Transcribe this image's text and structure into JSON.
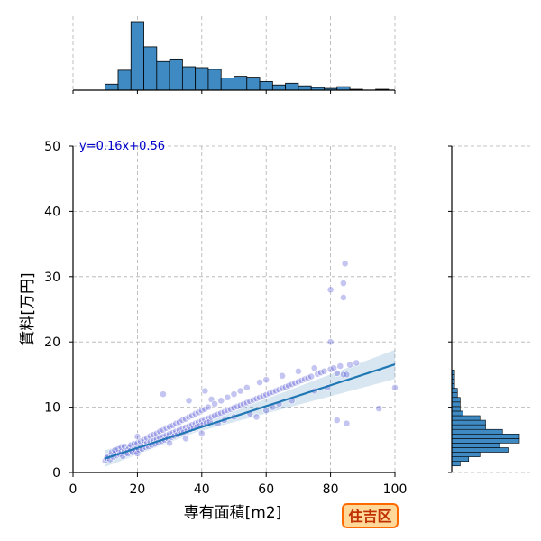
{
  "chart_data": {
    "type": "scatter",
    "xlabel": "専有面積[m2]",
    "ylabel": "賃料[万円]",
    "xlim": [
      0,
      100
    ],
    "ylim": [
      0,
      50
    ],
    "xticks": [
      "0",
      "20",
      "40",
      "60",
      "80",
      "100"
    ],
    "yticks": [
      "0",
      "10",
      "20",
      "30",
      "40",
      "50"
    ],
    "grid": true,
    "annotation": "y=0.16x+0.56",
    "badge": "住吉区",
    "regression": {
      "slope": 0.16,
      "intercept": 0.56,
      "x_range": [
        10,
        100
      ]
    },
    "marginal_x_hist": {
      "bin_edges": [
        10,
        14,
        18,
        22,
        26,
        30,
        34,
        38,
        42,
        46,
        50,
        54,
        58,
        62,
        66,
        70,
        74,
        78,
        82,
        86,
        90,
        94,
        98
      ],
      "counts": [
        7,
        23,
        79,
        50,
        33,
        36,
        27,
        26,
        24,
        14,
        16,
        15,
        10,
        6,
        8,
        5,
        3,
        2,
        4,
        1,
        0,
        1
      ]
    },
    "marginal_y_hist": {
      "bin_edges": [
        1,
        1.7,
        2.4,
        3.1,
        3.8,
        4.5,
        5.2,
        5.9,
        6.6,
        7.3,
        8,
        8.7,
        9.4,
        10.1,
        10.8,
        11.5,
        12.2,
        12.9,
        13.6,
        14.3,
        15,
        15.7
      ],
      "counts": [
        3,
        6,
        10,
        20,
        17,
        24,
        24,
        18,
        12,
        12,
        10,
        4,
        3,
        3,
        3,
        2,
        2,
        1,
        1,
        1,
        1,
        0
      ]
    },
    "points": [
      [
        10,
        1.8
      ],
      [
        10.5,
        2.2
      ],
      [
        11,
        2.5
      ],
      [
        11.5,
        2.0
      ],
      [
        12,
        2.7
      ],
      [
        12,
        3.1
      ],
      [
        12.5,
        2.4
      ],
      [
        13,
        2.9
      ],
      [
        13,
        3.4
      ],
      [
        13.5,
        2.6
      ],
      [
        14,
        3.0
      ],
      [
        14,
        3.6
      ],
      [
        14.5,
        2.8
      ],
      [
        15,
        3.2
      ],
      [
        15,
        3.9
      ],
      [
        15.5,
        2.5
      ],
      [
        16,
        3.3
      ],
      [
        16,
        4.0
      ],
      [
        16.5,
        3.0
      ],
      [
        17,
        3.5
      ],
      [
        17,
        2.9
      ],
      [
        17.5,
        3.8
      ],
      [
        18,
        3.4
      ],
      [
        18,
        4.2
      ],
      [
        18.5,
        3.1
      ],
      [
        19,
        3.6
      ],
      [
        19,
        4.4
      ],
      [
        19.5,
        3.2
      ],
      [
        20,
        3.8
      ],
      [
        20,
        4.5
      ],
      [
        20,
        2.9
      ],
      [
        20,
        5.5
      ],
      [
        20.5,
        3.5
      ],
      [
        21,
        4.1
      ],
      [
        21,
        4.8
      ],
      [
        21.5,
        3.6
      ],
      [
        22,
        4.3
      ],
      [
        22,
        5.0
      ],
      [
        22.5,
        3.9
      ],
      [
        23,
        4.5
      ],
      [
        23,
        5.3
      ],
      [
        23.5,
        4.0
      ],
      [
        24,
        4.7
      ],
      [
        24,
        5.6
      ],
      [
        24.5,
        4.2
      ],
      [
        25,
        4.9
      ],
      [
        25,
        5.8
      ],
      [
        25.5,
        4.4
      ],
      [
        26,
        5.1
      ],
      [
        26,
        6.0
      ],
      [
        26.5,
        4.6
      ],
      [
        27,
        5.3
      ],
      [
        27,
        6.3
      ],
      [
        27.5,
        4.8
      ],
      [
        28,
        5.5
      ],
      [
        28,
        6.5
      ],
      [
        28,
        12.0
      ],
      [
        28.5,
        5.0
      ],
      [
        29,
        5.7
      ],
      [
        29,
        6.8
      ],
      [
        29.5,
        5.2
      ],
      [
        30,
        5.9
      ],
      [
        30,
        7.0
      ],
      [
        30,
        4.5
      ],
      [
        30.5,
        5.4
      ],
      [
        31,
        6.1
      ],
      [
        31,
        7.2
      ],
      [
        31.5,
        5.6
      ],
      [
        32,
        6.3
      ],
      [
        32,
        7.5
      ],
      [
        32.5,
        5.8
      ],
      [
        33,
        6.5
      ],
      [
        33,
        7.7
      ],
      [
        33.5,
        6.0
      ],
      [
        34,
        6.7
      ],
      [
        34,
        8.0
      ],
      [
        34.5,
        6.2
      ],
      [
        35,
        6.9
      ],
      [
        35,
        8.2
      ],
      [
        35,
        5.2
      ],
      [
        35.5,
        6.4
      ],
      [
        36,
        7.1
      ],
      [
        36,
        8.5
      ],
      [
        36,
        11.0
      ],
      [
        36.5,
        6.6
      ],
      [
        37,
        7.3
      ],
      [
        37,
        8.7
      ],
      [
        37.5,
        6.8
      ],
      [
        38,
        7.5
      ],
      [
        38,
        9.0
      ],
      [
        38.5,
        7.0
      ],
      [
        39,
        7.7
      ],
      [
        39,
        9.2
      ],
      [
        39.5,
        7.2
      ],
      [
        40,
        7.9
      ],
      [
        40,
        9.5
      ],
      [
        40,
        6.0
      ],
      [
        40.5,
        7.4
      ],
      [
        41,
        8.1
      ],
      [
        41,
        9.7
      ],
      [
        41,
        12.5
      ],
      [
        41.5,
        7.6
      ],
      [
        42,
        8.3
      ],
      [
        42,
        10.0
      ],
      [
        42.5,
        7.8
      ],
      [
        43,
        8.5
      ],
      [
        43,
        11.2
      ],
      [
        44,
        8.7
      ],
      [
        44,
        10.5
      ],
      [
        45,
        8.9
      ],
      [
        45,
        7.5
      ],
      [
        46,
        9.1
      ],
      [
        46,
        11.0
      ],
      [
        47,
        9.3
      ],
      [
        47,
        8.0
      ],
      [
        48,
        9.5
      ],
      [
        48,
        11.5
      ],
      [
        49,
        9.7
      ],
      [
        50,
        9.9
      ],
      [
        50,
        12.0
      ],
      [
        50,
        8.5
      ],
      [
        51,
        10.1
      ],
      [
        52,
        10.3
      ],
      [
        52,
        12.5
      ],
      [
        53,
        10.5
      ],
      [
        54,
        10.7
      ],
      [
        54,
        13.0
      ],
      [
        55,
        10.9
      ],
      [
        55,
        9.0
      ],
      [
        56,
        11.1
      ],
      [
        57,
        11.3
      ],
      [
        57,
        8.5
      ],
      [
        58,
        11.5
      ],
      [
        58,
        13.8
      ],
      [
        59,
        11.7
      ],
      [
        60,
        11.9
      ],
      [
        60,
        9.5
      ],
      [
        60,
        14.2
      ],
      [
        61,
        12.1
      ],
      [
        62,
        12.3
      ],
      [
        62,
        10.0
      ],
      [
        63,
        12.5
      ],
      [
        64,
        12.7
      ],
      [
        64,
        10.5
      ],
      [
        65,
        12.9
      ],
      [
        65,
        14.8
      ],
      [
        66,
        13.1
      ],
      [
        67,
        13.3
      ],
      [
        68,
        13.5
      ],
      [
        68,
        11.0
      ],
      [
        69,
        13.7
      ],
      [
        70,
        13.9
      ],
      [
        70,
        15.5
      ],
      [
        71,
        14.1
      ],
      [
        72,
        14.3
      ],
      [
        73,
        14.5
      ],
      [
        74,
        14.7
      ],
      [
        75,
        16.0
      ],
      [
        75,
        12.5
      ],
      [
        76,
        15.1
      ],
      [
        77,
        15.3
      ],
      [
        78,
        15.5
      ],
      [
        79,
        13.0
      ],
      [
        80,
        15.8
      ],
      [
        80,
        20.0
      ],
      [
        80,
        28.0
      ],
      [
        81,
        16.0
      ],
      [
        82,
        15.2
      ],
      [
        83,
        16.3
      ],
      [
        84,
        15.0
      ],
      [
        84,
        29.0
      ],
      [
        84,
        26.8
      ],
      [
        84.5,
        32.0
      ],
      [
        85,
        7.5
      ],
      [
        85,
        15.0
      ],
      [
        86,
        16.5
      ],
      [
        88,
        16.8
      ],
      [
        95,
        9.8
      ],
      [
        100,
        13.0
      ],
      [
        82,
        8.0
      ]
    ]
  }
}
